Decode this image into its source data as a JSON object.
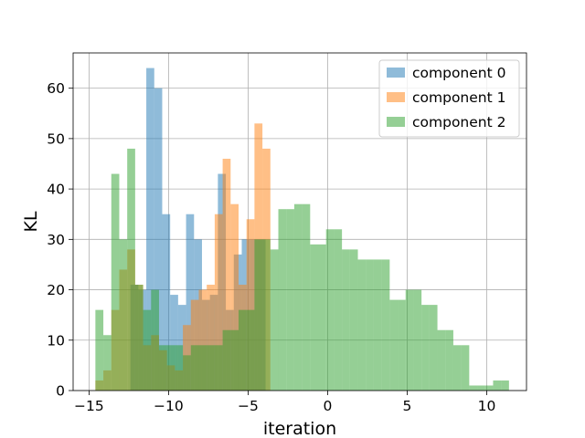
{
  "chart_data": {
    "type": "bar",
    "subtype": "overlapping-histogram",
    "title": "",
    "xlabel": "iteration",
    "ylabel": "KL",
    "xlim": [
      -16,
      12.5
    ],
    "ylim": [
      0,
      67
    ],
    "xticks": [
      -15,
      -10,
      -5,
      0,
      5,
      10
    ],
    "yticks": [
      0,
      10,
      20,
      30,
      40,
      50,
      60
    ],
    "grid": true,
    "legend_position": "top-right",
    "bar_opacity": 0.5,
    "series": [
      {
        "name": "component 0",
        "color": "#1f77b4",
        "bins": [
          [
            -12.4,
            -11.9,
            21
          ],
          [
            -11.9,
            -11.4,
            20
          ],
          [
            -11.4,
            -10.9,
            64
          ],
          [
            -10.9,
            -10.4,
            60
          ],
          [
            -10.4,
            -9.9,
            35
          ],
          [
            -9.9,
            -9.4,
            19
          ],
          [
            -9.4,
            -8.9,
            17
          ],
          [
            -8.9,
            -8.4,
            35
          ],
          [
            -8.4,
            -7.9,
            30
          ],
          [
            -7.9,
            -7.4,
            18
          ],
          [
            -7.4,
            -6.9,
            19
          ],
          [
            -6.9,
            -6.4,
            43
          ],
          [
            -6.4,
            -5.9,
            16
          ],
          [
            -5.9,
            -5.4,
            27
          ],
          [
            -5.4,
            -4.9,
            30
          ],
          [
            -4.9,
            -4.4,
            30
          ],
          [
            -4.4,
            -3.9,
            30
          ]
        ]
      },
      {
        "name": "component 1",
        "color": "#ff7f0e",
        "bins": [
          [
            -14.6,
            -14.1,
            2
          ],
          [
            -14.1,
            -13.6,
            4
          ],
          [
            -13.6,
            -13.1,
            16
          ],
          [
            -13.1,
            -12.6,
            24
          ],
          [
            -12.6,
            -12.1,
            28
          ],
          [
            -12.1,
            -11.6,
            21
          ],
          [
            -11.6,
            -11.1,
            9
          ],
          [
            -11.1,
            -10.6,
            11
          ],
          [
            -10.6,
            -10.1,
            8
          ],
          [
            -10.1,
            -9.6,
            5
          ],
          [
            -9.6,
            -9.1,
            4
          ],
          [
            -9.1,
            -8.6,
            13
          ],
          [
            -8.6,
            -8.1,
            18
          ],
          [
            -8.1,
            -7.6,
            20
          ],
          [
            -7.6,
            -7.1,
            21
          ],
          [
            -7.1,
            -6.6,
            35
          ],
          [
            -6.6,
            -6.1,
            46
          ],
          [
            -6.1,
            -5.6,
            37
          ],
          [
            -5.6,
            -5.1,
            21
          ],
          [
            -5.1,
            -4.6,
            34
          ],
          [
            -4.6,
            -4.1,
            53
          ],
          [
            -4.1,
            -3.6,
            48
          ]
        ]
      },
      {
        "name": "component 2",
        "color": "#2ca02c",
        "bins": [
          [
            -14.6,
            -14.1,
            16
          ],
          [
            -14.1,
            -13.6,
            11
          ],
          [
            -13.6,
            -13.1,
            43
          ],
          [
            -13.1,
            -12.6,
            30
          ],
          [
            -12.6,
            -12.1,
            48
          ],
          [
            -12.1,
            -11.6,
            21
          ],
          [
            -11.6,
            -11.1,
            16
          ],
          [
            -11.1,
            -10.6,
            20
          ],
          [
            -10.6,
            -10.1,
            9
          ],
          [
            -10.1,
            -9.6,
            9
          ],
          [
            -9.6,
            -9.1,
            9
          ],
          [
            -9.1,
            -8.6,
            7
          ],
          [
            -8.6,
            -8.1,
            9
          ],
          [
            -8.1,
            -7.6,
            9
          ],
          [
            -7.6,
            -7.1,
            9
          ],
          [
            -7.1,
            -6.6,
            9
          ],
          [
            -6.6,
            -6.1,
            12
          ],
          [
            -6.1,
            -5.6,
            12
          ],
          [
            -5.6,
            -5.1,
            16
          ],
          [
            -5.1,
            -4.6,
            16
          ],
          [
            -4.6,
            -4.1,
            30
          ],
          [
            -4.1,
            -3.6,
            30
          ],
          [
            -3.6,
            -3.1,
            28
          ],
          [
            -3.1,
            -2.6,
            36
          ],
          [
            -2.6,
            -2.1,
            36
          ],
          [
            -2.1,
            -1.6,
            37
          ],
          [
            -1.6,
            -1.1,
            37
          ],
          [
            -1.1,
            -0.6,
            29
          ],
          [
            -0.6,
            -0.1,
            29
          ],
          [
            -0.1,
            0.4,
            32
          ],
          [
            0.4,
            0.9,
            32
          ],
          [
            0.9,
            1.4,
            28
          ],
          [
            1.4,
            1.9,
            28
          ],
          [
            1.9,
            2.4,
            26
          ],
          [
            2.4,
            2.9,
            26
          ],
          [
            2.9,
            3.4,
            26
          ],
          [
            3.4,
            3.9,
            26
          ],
          [
            3.9,
            4.4,
            18
          ],
          [
            4.4,
            4.9,
            18
          ],
          [
            4.9,
            5.4,
            20
          ],
          [
            5.4,
            5.9,
            20
          ],
          [
            5.9,
            6.4,
            17
          ],
          [
            6.4,
            6.9,
            17
          ],
          [
            6.9,
            7.4,
            12
          ],
          [
            7.4,
            7.9,
            12
          ],
          [
            7.9,
            8.4,
            9
          ],
          [
            8.4,
            8.9,
            9
          ],
          [
            8.9,
            9.4,
            1
          ],
          [
            9.4,
            9.9,
            1
          ],
          [
            9.9,
            10.4,
            1
          ],
          [
            10.4,
            10.9,
            2
          ],
          [
            10.9,
            11.4,
            2
          ]
        ]
      }
    ]
  }
}
